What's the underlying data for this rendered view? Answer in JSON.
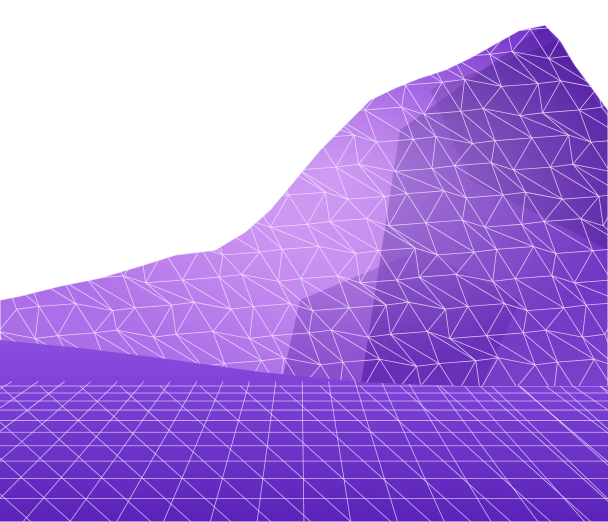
{
  "scene": {
    "subject": "wireframe-terrain",
    "colors": {
      "background": "#ffffff",
      "floor_far": "#7c3fd6",
      "floor_near": "#5a22b8",
      "peak_light": "#c27ee8",
      "peak_mid": "#9c55de",
      "slope_shadow": "#5b21ad",
      "ridge_dark": "#3f1580",
      "grid_line": "#efe3ff",
      "haze": "#e9c6ff"
    }
  }
}
